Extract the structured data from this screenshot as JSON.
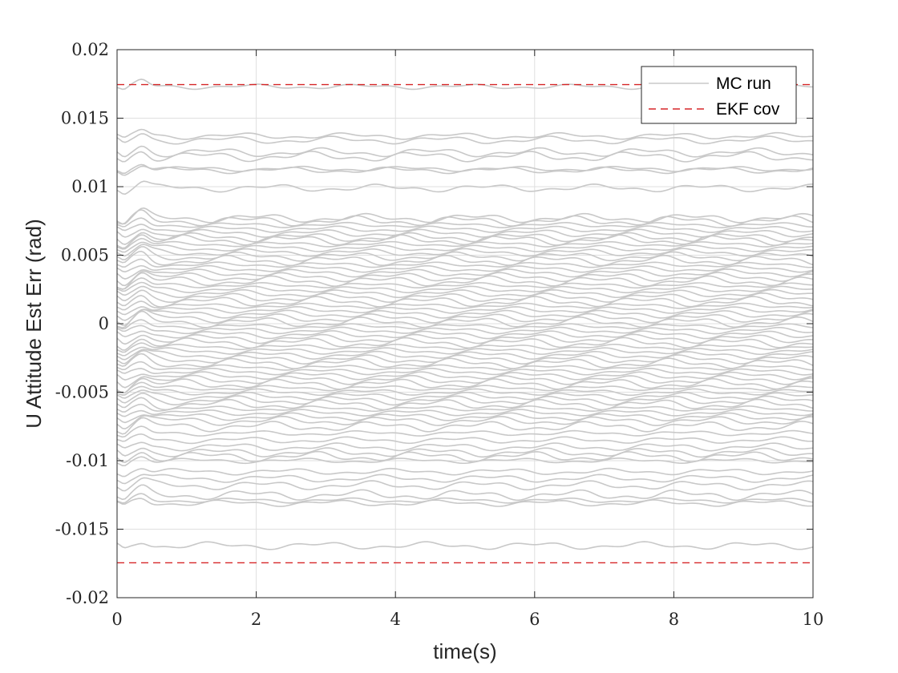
{
  "chart_data": {
    "type": "line",
    "xlabel": "time(s)",
    "ylabel": "U Attitude Est Err (rad)",
    "xlim": [
      0,
      10
    ],
    "ylim": [
      -0.02,
      0.02
    ],
    "x_ticks": [
      0,
      2,
      4,
      6,
      8,
      10
    ],
    "y_ticks": [
      -0.02,
      -0.015,
      -0.01,
      -0.005,
      0,
      0.005,
      0.01,
      0.015,
      0.02
    ],
    "x_tick_labels": [
      "0",
      "2",
      "4",
      "6",
      "8",
      "10"
    ],
    "y_tick_labels": [
      "-0.02",
      "-0.015",
      "-0.01",
      "-0.005",
      "0",
      "0.005",
      "0.01",
      "0.015",
      "0.02"
    ],
    "grid": true,
    "legend": {
      "placement": "top-right",
      "entries": [
        {
          "label": "MC run",
          "style": "solid",
          "color": "#c8c8c8"
        },
        {
          "label": "EKF cov",
          "style": "dashed",
          "color": "#d62728"
        }
      ]
    },
    "series": [
      {
        "name": "EKF cov",
        "style": "dashed",
        "color": "#d62728",
        "x": [
          0,
          10
        ],
        "upper": [
          0.01745,
          0.01745
        ],
        "lower": [
          -0.01745,
          -0.01745
        ]
      },
      {
        "name": "MC run",
        "style": "solid",
        "color": "#c8c8c8",
        "description_levels": "MC run offsets (rad) at steady state",
        "offsets": [
          0.0173,
          0.0137,
          0.0134,
          0.0125,
          0.0122,
          0.0113,
          0.0112,
          0.0099,
          0.0077,
          0.0075,
          0.0072,
          0.0069,
          0.0066,
          0.0063,
          0.0061,
          0.0058,
          0.0055,
          0.0052,
          0.0049,
          0.0046,
          0.0043,
          0.004,
          0.0037,
          0.0034,
          0.0031,
          0.0028,
          0.0025,
          0.0022,
          0.0019,
          0.0016,
          0.0013,
          0.001,
          0.0007,
          0.0004,
          0.0001,
          -0.0002,
          -0.0005,
          -0.0008,
          -0.0011,
          -0.0014,
          -0.0017,
          -0.002,
          -0.0023,
          -0.0026,
          -0.0029,
          -0.0032,
          -0.0035,
          -0.0038,
          -0.0041,
          -0.0044,
          -0.0047,
          -0.005,
          -0.0053,
          -0.0056,
          -0.0059,
          -0.0062,
          -0.0065,
          -0.0068,
          -0.0071,
          -0.0075,
          -0.008,
          -0.0085,
          -0.009,
          -0.0094,
          -0.0097,
          -0.01,
          -0.0108,
          -0.0113,
          -0.0118,
          -0.0125,
          -0.0129,
          -0.0131,
          -0.0162
        ]
      }
    ]
  }
}
